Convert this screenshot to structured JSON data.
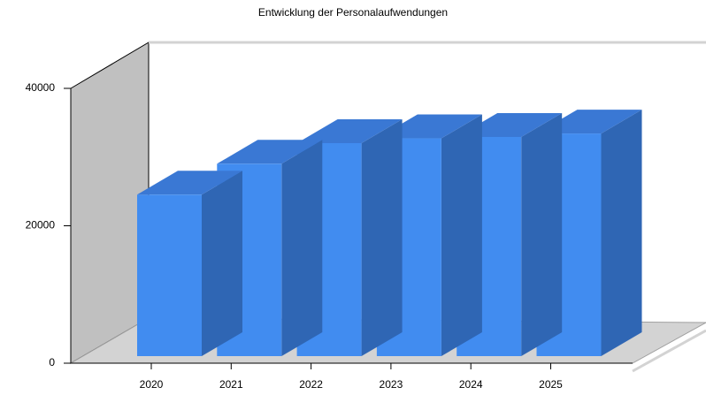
{
  "chart_data": {
    "type": "bar3d",
    "title": "Entwicklung der Personalaufwendungen",
    "categories": [
      "2020",
      "2021",
      "2022",
      "2023",
      "2024",
      "2025"
    ],
    "values": [
      23500,
      28000,
      31000,
      31700,
      31900,
      32400
    ],
    "color": "#418cf0",
    "ylim": [
      0,
      40000
    ],
    "yticks": [
      0,
      20000,
      40000
    ]
  }
}
